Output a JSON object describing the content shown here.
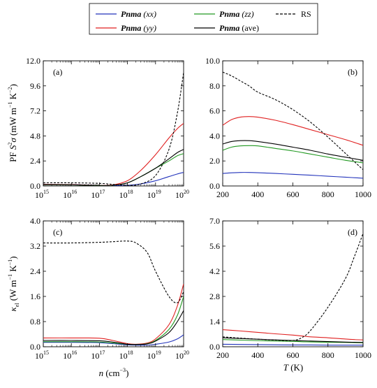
{
  "legend": {
    "entries": [
      {
        "key": "xx",
        "model": "Pnma",
        "tag": "(xx)",
        "tag_italic": true,
        "color": "#2233bb",
        "dashed": false
      },
      {
        "key": "yy",
        "model": "Pnma",
        "tag": "(yy)",
        "tag_italic": true,
        "color": "#e02020",
        "dashed": false
      },
      {
        "key": "zz",
        "model": "Pnma",
        "tag": "(zz)",
        "tag_italic": true,
        "color": "#229922",
        "dashed": false
      },
      {
        "key": "ave",
        "model": "Pnma",
        "tag": "(ave)",
        "tag_italic": false,
        "color": "#000000",
        "dashed": false
      },
      {
        "key": "rs",
        "model": "",
        "tag": "RS",
        "tag_italic": false,
        "color": "#000000",
        "dashed": true
      }
    ]
  },
  "axes": {
    "ylabel_top": "PF S²σ (mW m⁻¹ K⁻²)",
    "ylabel_bottom": "κel (W m⁻¹ K⁻¹)",
    "xlabel_left": "n (cm⁻³)",
    "xlabel_right": "T (K)"
  },
  "chart_data": [
    {
      "panel": "(a)",
      "type": "line",
      "xscale": "log",
      "xlim": [
        1000000000000000.0,
        1e+20
      ],
      "ylim": [
        0,
        12
      ],
      "xticks_exponent": [
        15,
        16,
        17,
        18,
        19,
        20
      ],
      "xtick_base": "10",
      "yticks": [
        "0.0",
        "2.4",
        "4.8",
        "7.2",
        "9.6",
        "12.0"
      ],
      "ytick_values": [
        0,
        2.4,
        4.8,
        7.2,
        9.6,
        12.0
      ],
      "x": [
        1000000000000000.0,
        1e+16,
        1e+17,
        3e+17,
        1e+18,
        3e+18,
        1e+19,
        3e+19,
        6e+19,
        1e+20
      ],
      "series": [
        {
          "key": "xx",
          "values": [
            0.15,
            0.13,
            0.05,
            0.02,
            0.06,
            0.2,
            0.5,
            0.9,
            1.15,
            1.3
          ]
        },
        {
          "key": "yy",
          "values": [
            0.15,
            0.13,
            0.05,
            0.1,
            0.5,
            1.5,
            3.0,
            4.6,
            5.5,
            6.0
          ]
        },
        {
          "key": "zz",
          "values": [
            0.1,
            0.1,
            0.04,
            0.05,
            0.3,
            0.9,
            1.7,
            2.4,
            2.9,
            3.1
          ]
        },
        {
          "key": "ave",
          "values": [
            0.12,
            0.11,
            0.05,
            0.06,
            0.3,
            0.9,
            1.7,
            2.6,
            3.2,
            3.5
          ]
        },
        {
          "key": "rs",
          "values": [
            0.3,
            0.3,
            0.25,
            0.15,
            0.05,
            0.2,
            1.0,
            3.5,
            7.0,
            10.9
          ]
        }
      ]
    },
    {
      "panel": "(b)",
      "type": "line",
      "xscale": "linear",
      "xlim": [
        200,
        1000
      ],
      "ylim": [
        0,
        10
      ],
      "xticks": [
        "200",
        "400",
        "600",
        "800",
        "1000"
      ],
      "xtick_values": [
        200,
        400,
        600,
        800,
        1000
      ],
      "yticks": [
        "0.0",
        "2.0",
        "4.0",
        "6.0",
        "8.0",
        "10.0"
      ],
      "ytick_values": [
        0,
        2,
        4,
        6,
        8,
        10
      ],
      "x": [
        200,
        250,
        300,
        350,
        400,
        500,
        600,
        700,
        800,
        900,
        1000
      ],
      "series": [
        {
          "key": "xx",
          "values": [
            1.0,
            1.05,
            1.08,
            1.08,
            1.06,
            1.0,
            0.93,
            0.86,
            0.78,
            0.7,
            0.62
          ]
        },
        {
          "key": "yy",
          "values": [
            4.85,
            5.3,
            5.5,
            5.55,
            5.5,
            5.25,
            4.9,
            4.5,
            4.1,
            3.7,
            3.25
          ]
        },
        {
          "key": "zz",
          "values": [
            2.85,
            3.1,
            3.2,
            3.22,
            3.2,
            3.0,
            2.8,
            2.55,
            2.3,
            2.05,
            1.85
          ]
        },
        {
          "key": "ave",
          "values": [
            3.35,
            3.55,
            3.62,
            3.62,
            3.55,
            3.35,
            3.1,
            2.85,
            2.55,
            2.3,
            2.05
          ]
        },
        {
          "key": "rs",
          "values": [
            9.1,
            8.8,
            8.4,
            8.0,
            7.5,
            6.9,
            6.1,
            5.1,
            3.9,
            2.6,
            1.3
          ]
        }
      ]
    },
    {
      "panel": "(c)",
      "type": "line",
      "xscale": "log",
      "xlim": [
        1000000000000000.0,
        1e+20
      ],
      "ylim": [
        0,
        4
      ],
      "xticks_exponent": [
        15,
        16,
        17,
        18,
        19,
        20
      ],
      "xtick_base": "10",
      "yticks": [
        "0.0",
        "0.8",
        "1.6",
        "2.4",
        "3.2",
        "4.0"
      ],
      "ytick_values": [
        0,
        0.8,
        1.6,
        2.4,
        3.2,
        4.0
      ],
      "x": [
        1000000000000000.0,
        1e+16,
        1e+17,
        3e+17,
        1e+18,
        2e+18,
        5e+18,
        1e+19,
        3e+19,
        6e+19,
        1e+20
      ],
      "series": [
        {
          "key": "xx",
          "values": [
            0.14,
            0.14,
            0.13,
            0.1,
            0.06,
            0.05,
            0.05,
            0.08,
            0.15,
            0.25,
            0.38
          ]
        },
        {
          "key": "yy",
          "values": [
            0.28,
            0.28,
            0.27,
            0.2,
            0.1,
            0.08,
            0.12,
            0.25,
            0.7,
            1.3,
            2.0
          ]
        },
        {
          "key": "zz",
          "values": [
            0.16,
            0.16,
            0.15,
            0.12,
            0.08,
            0.07,
            0.1,
            0.2,
            0.55,
            1.0,
            1.6
          ]
        },
        {
          "key": "ave",
          "values": [
            0.2,
            0.2,
            0.19,
            0.15,
            0.08,
            0.07,
            0.09,
            0.18,
            0.45,
            0.8,
            1.15
          ]
        },
        {
          "key": "rs",
          "values": [
            3.3,
            3.3,
            3.32,
            3.34,
            3.36,
            3.3,
            3.0,
            2.4,
            1.6,
            1.4,
            1.75
          ]
        }
      ]
    },
    {
      "panel": "(d)",
      "type": "line",
      "xscale": "linear",
      "xlim": [
        200,
        1000
      ],
      "ylim": [
        0,
        7
      ],
      "xticks": [
        "200",
        "400",
        "600",
        "800",
        "1000"
      ],
      "xtick_values": [
        200,
        400,
        600,
        800,
        1000
      ],
      "yticks": [
        "0.0",
        "1.4",
        "2.8",
        "4.2",
        "5.6",
        "7.0"
      ],
      "ytick_values": [
        0,
        1.4,
        2.8,
        4.2,
        5.6,
        7.0
      ],
      "x": [
        200,
        300,
        400,
        500,
        600,
        650,
        700,
        800,
        900,
        950,
        1000
      ],
      "series": [
        {
          "key": "xx",
          "values": [
            0.14,
            0.13,
            0.12,
            0.11,
            0.1,
            0.1,
            0.1,
            0.09,
            0.09,
            0.09,
            0.09
          ]
        },
        {
          "key": "yy",
          "values": [
            0.95,
            0.88,
            0.8,
            0.72,
            0.65,
            0.6,
            0.55,
            0.5,
            0.43,
            0.4,
            0.38
          ]
        },
        {
          "key": "zz",
          "values": [
            0.4,
            0.37,
            0.34,
            0.32,
            0.3,
            0.28,
            0.27,
            0.25,
            0.24,
            0.23,
            0.22
          ]
        },
        {
          "key": "ave",
          "values": [
            0.5,
            0.46,
            0.42,
            0.38,
            0.35,
            0.33,
            0.32,
            0.29,
            0.26,
            0.25,
            0.24
          ]
        },
        {
          "key": "rs",
          "values": [
            0.55,
            0.48,
            0.42,
            0.37,
            0.35,
            0.5,
            0.9,
            2.2,
            3.8,
            5.0,
            6.3
          ]
        }
      ]
    }
  ]
}
